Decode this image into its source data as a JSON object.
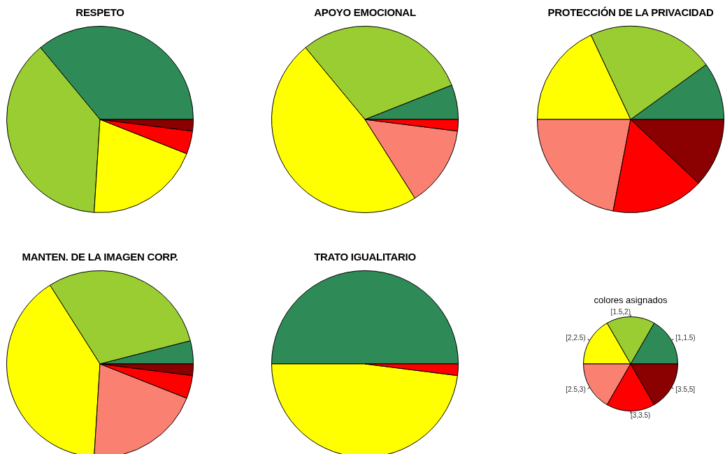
{
  "chart_data": [
    {
      "type": "pie",
      "title": "RESPETO",
      "categories": [
        null,
        null,
        null,
        null,
        null,
        null
      ],
      "values": [
        36,
        38,
        20,
        0,
        4,
        2
      ],
      "colors": [
        "#2e8b57",
        "#9acd32",
        "#ffff00",
        "#fa8072",
        "#ff0000",
        "#8b0000"
      ]
    },
    {
      "type": "pie",
      "title": "APOYO EMOCIONAL",
      "categories": [
        null,
        null,
        null,
        null,
        null,
        null
      ],
      "values": [
        6,
        30,
        48,
        14,
        2,
        0
      ],
      "colors": [
        "#2e8b57",
        "#9acd32",
        "#ffff00",
        "#fa8072",
        "#ff0000",
        "#8b0000"
      ]
    },
    {
      "type": "pie",
      "title": "PROTECCIÓN DE LA PRIVACIDAD",
      "categories": [
        null,
        null,
        null,
        null,
        null,
        null
      ],
      "values": [
        10,
        22,
        18,
        22,
        16,
        12
      ],
      "colors": [
        "#2e8b57",
        "#9acd32",
        "#ffff00",
        "#fa8072",
        "#ff0000",
        "#8b0000"
      ]
    },
    {
      "type": "pie",
      "title": "MANTEN. DE LA IMAGEN CORP.",
      "categories": [
        null,
        null,
        null,
        null,
        null,
        null
      ],
      "values": [
        4,
        30,
        40,
        20,
        4,
        2
      ],
      "colors": [
        "#2e8b57",
        "#9acd32",
        "#ffff00",
        "#fa8072",
        "#ff0000",
        "#8b0000"
      ]
    },
    {
      "type": "pie",
      "title": "TRATO IGUALITARIO",
      "categories": [
        null,
        null,
        null,
        null,
        null,
        null
      ],
      "values": [
        50,
        0,
        48,
        0,
        2,
        0
      ],
      "colors": [
        "#2e8b57",
        "#9acd32",
        "#ffff00",
        "#fa8072",
        "#ff0000",
        "#8b0000"
      ]
    },
    {
      "type": "pie",
      "title": "colores asignados",
      "categories": [
        "[1,1.5)",
        "[1.5,2)",
        "[2,2.5)",
        "[2.5,3)",
        "[3,3.5)",
        "[3.5,5]"
      ],
      "values": [
        16.67,
        16.67,
        16.67,
        16.67,
        16.66,
        16.66
      ],
      "colors": [
        "#2e8b57",
        "#9acd32",
        "#ffff00",
        "#fa8072",
        "#ff0000",
        "#8b0000"
      ]
    }
  ]
}
